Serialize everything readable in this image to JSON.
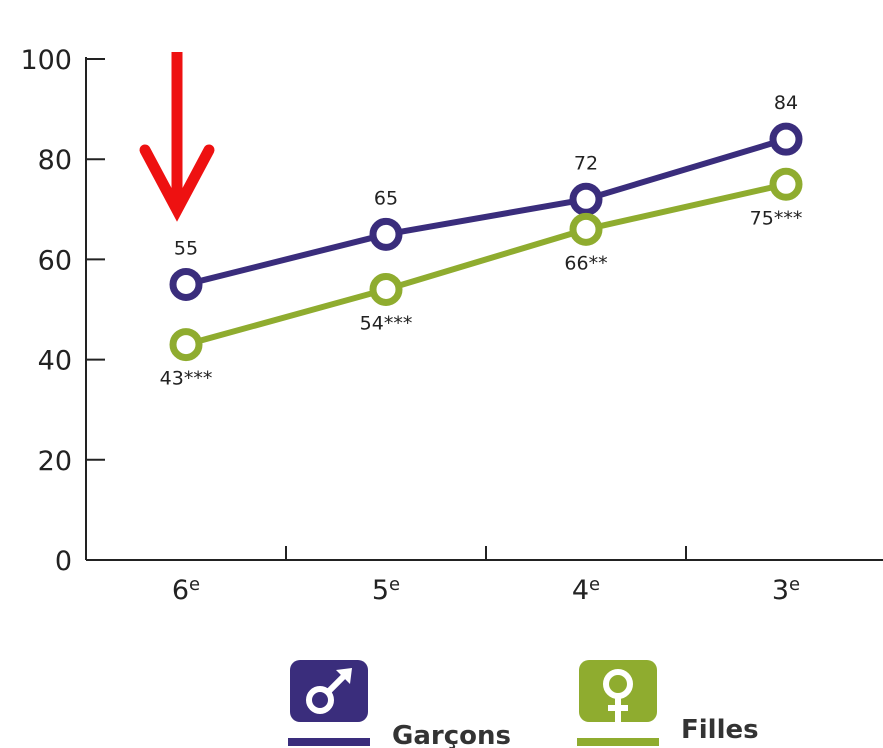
{
  "chart_data": {
    "type": "line",
    "categories": [
      "6e",
      "5e",
      "4e",
      "3e"
    ],
    "category_labels": [
      {
        "base": "6",
        "sup": "e"
      },
      {
        "base": "5",
        "sup": "e"
      },
      {
        "base": "4",
        "sup": "e"
      },
      {
        "base": "3",
        "sup": "e"
      }
    ],
    "ylim": [
      0,
      100
    ],
    "yticks": [
      "0",
      "20",
      "40",
      "60",
      "80",
      "100"
    ],
    "grid": false,
    "legend_position": "bottom-center",
    "series": [
      {
        "name": "Garçons",
        "color": "#3a2d7c",
        "icon": "male-symbol-icon",
        "values": [
          55,
          65,
          72,
          84
        ],
        "labels": [
          "55",
          "65",
          "72",
          "84"
        ]
      },
      {
        "name": "Filles",
        "color": "#8fac2f",
        "icon": "female-symbol-icon",
        "values": [
          43,
          54,
          66,
          75
        ],
        "labels": [
          "43***",
          "54***",
          "66**",
          "75***"
        ]
      }
    ],
    "annotation": {
      "type": "arrow",
      "icon": "down-arrow-icon",
      "color": "#ee1111",
      "target_category": "6e"
    }
  }
}
